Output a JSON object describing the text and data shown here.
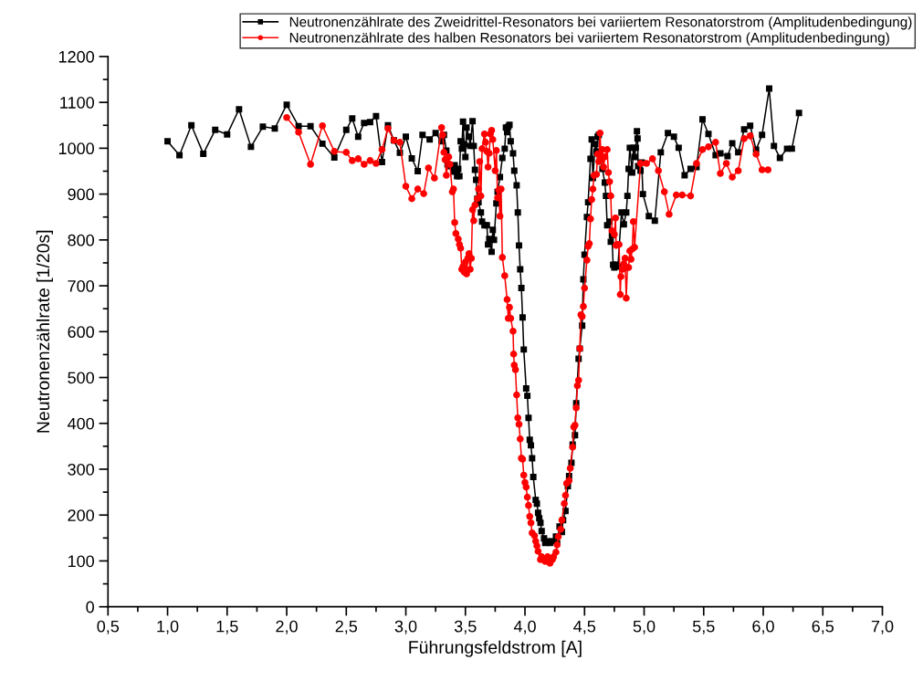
{
  "chart_data": {
    "type": "line",
    "xlabel": "Führungsfeldstrom [A]",
    "ylabel": "Neutronenzählrate [1/20s]",
    "xlim": [
      0.5,
      7.0
    ],
    "ylim": [
      0,
      1200
    ],
    "xticks": [
      {
        "value": 0.5,
        "label": "0,5"
      },
      {
        "value": 1.0,
        "label": "1,0"
      },
      {
        "value": 1.5,
        "label": "1,5"
      },
      {
        "value": 2.0,
        "label": "2,0"
      },
      {
        "value": 2.5,
        "label": "2,5"
      },
      {
        "value": 3.0,
        "label": "3,0"
      },
      {
        "value": 3.5,
        "label": "3,5"
      },
      {
        "value": 4.0,
        "label": "4,0"
      },
      {
        "value": 4.5,
        "label": "4,5"
      },
      {
        "value": 5.0,
        "label": "5,0"
      },
      {
        "value": 5.5,
        "label": "5,5"
      },
      {
        "value": 6.0,
        "label": "6,0"
      },
      {
        "value": 6.5,
        "label": "6,5"
      },
      {
        "value": 7.0,
        "label": "7,0"
      }
    ],
    "yticks": [
      0,
      100,
      200,
      300,
      400,
      500,
      600,
      700,
      800,
      900,
      1000,
      1100,
      1200
    ],
    "grid": false,
    "legend": "top right",
    "line_style": "solid",
    "series": [
      {
        "name": "Neutronenzählrate des Zweidrittel-Resonators bei variiertem Resonatorstrom (Amplitudenbedingung)",
        "color": "#000000",
        "marker": "square",
        "x": [
          1.0,
          1.1,
          1.2,
          1.3,
          1.4,
          1.5,
          1.6,
          1.7,
          1.8,
          1.9,
          2.0,
          2.1,
          2.2,
          2.3,
          2.4,
          2.5,
          2.55,
          2.6,
          2.65,
          2.7,
          2.75,
          2.8,
          2.85,
          2.9,
          2.95,
          3.0,
          3.05,
          3.1,
          3.14,
          3.2,
          3.25,
          3.3,
          3.32,
          3.34,
          3.35,
          3.37,
          3.4,
          3.41,
          3.43,
          3.44,
          3.45,
          3.46,
          3.47,
          3.48,
          3.49,
          3.5,
          3.51,
          3.53,
          3.54,
          3.56,
          3.57,
          3.58,
          3.59,
          3.6,
          3.61,
          3.63,
          3.64,
          3.66,
          3.68,
          3.69,
          3.7,
          3.72,
          3.73,
          3.74,
          3.76,
          3.77,
          3.79,
          3.81,
          3.83,
          3.84,
          3.85,
          3.86,
          3.87,
          3.88,
          3.9,
          3.91,
          3.93,
          3.94,
          3.95,
          3.96,
          3.97,
          3.98,
          3.99,
          4.01,
          4.02,
          4.03,
          4.04,
          4.05,
          4.06,
          4.07,
          4.09,
          4.1,
          4.11,
          4.12,
          4.13,
          4.14,
          4.16,
          4.17,
          4.19,
          4.21,
          4.23,
          4.26,
          4.27,
          4.29,
          4.31,
          4.32,
          4.34,
          4.36,
          4.37,
          4.39,
          4.4,
          4.42,
          4.43,
          4.45,
          4.46,
          4.48,
          4.49,
          4.5,
          4.52,
          4.53,
          4.55,
          4.56,
          4.57,
          4.59,
          4.6,
          4.61,
          4.62,
          4.63,
          4.65,
          4.67,
          4.68,
          4.69,
          4.71,
          4.72,
          4.73,
          4.74,
          4.75,
          4.77,
          4.78,
          4.81,
          4.83,
          4.85,
          4.86,
          4.87,
          4.88,
          4.9,
          4.91,
          4.92,
          4.93,
          4.94,
          4.945,
          4.95,
          4.97,
          4.98,
          4.99,
          5.04,
          5.09,
          5.14,
          5.2,
          5.25,
          5.29,
          5.34,
          5.39,
          5.44,
          5.49,
          5.54,
          5.6,
          5.64,
          5.7,
          5.74,
          5.79,
          5.84,
          5.89,
          5.94,
          5.99,
          6.05,
          6.09,
          6.14,
          6.2,
          6.24,
          6.3
        ],
        "values": [
          1015,
          985,
          1050,
          988,
          1040,
          1030,
          1085,
          1003,
          1047,
          1043,
          1095,
          1048,
          1048,
          1010,
          980,
          1040,
          1065,
          1025,
          1055,
          1057,
          1070,
          970,
          1050,
          1017,
          990,
          1025,
          978,
          950,
          1029,
          1019,
          1033,
          1015,
          1029,
          995,
          965,
          961,
          949,
          963,
          939,
          955,
          939,
          1015,
          999,
          1058,
          1009,
          981,
          1045,
          1025,
          1005,
          1059,
          1005,
          953,
          931,
          890,
          882,
          860,
          840,
          832,
          832,
          790,
          802,
          774,
          822,
          800,
          880,
          905,
          937,
          979,
          999,
          1045,
          1035,
          1047,
          1051,
          1015,
          989,
          951,
          919,
          860,
          788,
          736,
          695,
          631,
          561,
          476,
          460,
          412,
          364,
          352,
          324,
          283,
          233,
          225,
          205,
          193,
          183,
          165,
          149,
          139,
          143,
          139,
          143,
          153,
          139,
          175,
          163,
          189,
          209,
          263,
          285,
          314,
          354,
          374,
          444,
          541,
          563,
          613,
          714,
          768,
          850,
          882,
          977,
          1019,
          935,
          1009,
          993,
          1025,
          1029,
          981,
          955,
          925,
          896,
          832,
          840,
          796,
          810,
          746,
          740,
          746,
          742,
          860,
          834,
          860,
          896,
          955,
          1001,
          947,
          1001,
          981,
          1001,
          1037,
          1021,
          961,
          951,
          969,
          900,
          852,
          842,
          991,
          1033,
          1025,
          1001,
          941,
          955,
          959,
          1063,
          1031,
          985,
          989,
          983,
          1011,
          991,
          1041,
          1049,
          997,
          1029,
          1130,
          1005,
          979,
          999,
          999,
          1077
        ]
      },
      {
        "name": "Neutronenzählrate des halben Resonators bei variiertem Resonatorstrom (Amplitudenbedingung)",
        "color": "#ff0000",
        "marker": "circle",
        "x": [
          2.0,
          2.1,
          2.2,
          2.3,
          2.4,
          2.5,
          2.55,
          2.6,
          2.65,
          2.7,
          2.75,
          2.8,
          2.85,
          2.9,
          2.95,
          3.0,
          3.05,
          3.1,
          3.15,
          3.19,
          3.24,
          3.3,
          3.31,
          3.32,
          3.33,
          3.34,
          3.36,
          3.37,
          3.39,
          3.4,
          3.41,
          3.42,
          3.44,
          3.45,
          3.46,
          3.47,
          3.48,
          3.49,
          3.5,
          3.51,
          3.52,
          3.53,
          3.54,
          3.55,
          3.56,
          3.57,
          3.58,
          3.6,
          3.61,
          3.62,
          3.63,
          3.64,
          3.66,
          3.67,
          3.68,
          3.69,
          3.7,
          3.71,
          3.72,
          3.73,
          3.75,
          3.76,
          3.77,
          3.78,
          3.79,
          3.8,
          3.81,
          3.83,
          3.85,
          3.86,
          3.87,
          3.88,
          3.9,
          3.905,
          3.91,
          3.92,
          3.93,
          3.94,
          3.95,
          3.96,
          3.97,
          3.98,
          3.99,
          4.0,
          4.01,
          4.02,
          4.03,
          4.04,
          4.05,
          4.06,
          4.08,
          4.09,
          4.1,
          4.11,
          4.13,
          4.14,
          4.16,
          4.17,
          4.19,
          4.2,
          4.21,
          4.23,
          4.24,
          4.26,
          4.27,
          4.28,
          4.3,
          4.31,
          4.33,
          4.34,
          4.35,
          4.37,
          4.38,
          4.4,
          4.41,
          4.42,
          4.43,
          4.44,
          4.45,
          4.46,
          4.47,
          4.48,
          4.49,
          4.5,
          4.52,
          4.53,
          4.54,
          4.55,
          4.56,
          4.57,
          4.58,
          4.6,
          4.61,
          4.62,
          4.63,
          4.64,
          4.65,
          4.66,
          4.67,
          4.69,
          4.7,
          4.71,
          4.72,
          4.73,
          4.75,
          4.76,
          4.765,
          4.77,
          4.79,
          4.8,
          4.805,
          4.82,
          4.83,
          4.84,
          4.85,
          4.86,
          4.87,
          4.88,
          4.89,
          4.9,
          4.91,
          4.92,
          4.97,
          5.02,
          5.07,
          5.12,
          5.17,
          5.21,
          5.27,
          5.32,
          5.39,
          5.44,
          5.49,
          5.54,
          5.6,
          5.64,
          5.69,
          5.74,
          5.79,
          5.84,
          5.89,
          5.94,
          5.99,
          6.04
        ],
        "values": [
          1067,
          1035,
          965,
          1049,
          993,
          991,
          973,
          977,
          965,
          973,
          967,
          997,
          1043,
          1017,
          1013,
          917,
          890,
          911,
          901,
          957,
          935,
          1045,
          1029,
          991,
          975,
          941,
          981,
          965,
          905,
          911,
          838,
          814,
          802,
          790,
          782,
          736,
          742,
          730,
          752,
          726,
          760,
          770,
          736,
          760,
          866,
          842,
          876,
          890,
          911,
          971,
          896,
          999,
          1031,
          1013,
          993,
          959,
          989,
          1031,
          1039,
          1019,
          951,
          995,
          892,
          909,
          852,
          911,
          762,
          722,
          670,
          629,
          653,
          629,
          601,
          551,
          527,
          517,
          462,
          412,
          398,
          366,
          324,
          322,
          287,
          271,
          261,
          239,
          221,
          197,
          183,
          161,
          155,
          143,
          133,
          121,
          103,
          109,
          103,
          99,
          109,
          101,
          95,
          103,
          109,
          119,
          135,
          153,
          169,
          189,
          225,
          243,
          269,
          275,
          302,
          348,
          392,
          396,
          434,
          482,
          494,
          563,
          637,
          633,
          655,
          695,
          756,
          786,
          792,
          846,
          888,
          911,
          941,
          943,
          987,
          971,
          1033,
          975,
          997,
          959,
          981,
          997,
          947,
          927,
          896,
          820,
          812,
          848,
          788,
          790,
          790,
          681,
          720,
          736,
          748,
          760,
          673,
          740,
          740,
          776,
          758,
          780,
          840,
          784,
          967,
          967,
          977,
          951,
          905,
          856,
          898,
          898,
          896,
          967,
          997,
          1003,
          1013,
          945,
          967,
          937,
          951,
          1021,
          1027,
          987,
          953,
          953
        ]
      }
    ]
  }
}
